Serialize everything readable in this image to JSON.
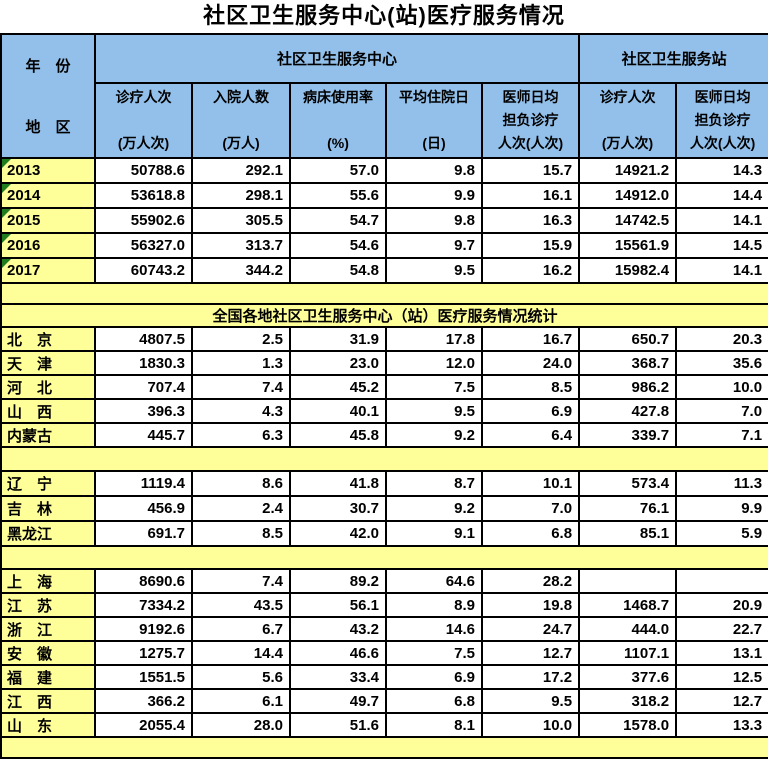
{
  "title": "社区卫生服务中心(站)医疗服务情况",
  "colors": {
    "header_blue": "#92C0EA",
    "label_yellow": "#FFFF99",
    "grid_border": "#000000",
    "error_triangle_green": "#1F7C1F"
  },
  "table": {
    "corner": {
      "top": "年　份",
      "bottom": "地　区"
    },
    "groups": [
      {
        "label": "社区卫生服务中心"
      },
      {
        "label": "社区卫生服务站"
      }
    ],
    "columns": [
      {
        "lines": [
          "诊疗人次",
          "(万人次)"
        ]
      },
      {
        "lines": [
          "入院人数",
          "(万人)"
        ]
      },
      {
        "lines": [
          "病床使用率",
          "(%)"
        ]
      },
      {
        "lines": [
          "平均住院日",
          "(日)"
        ]
      },
      {
        "lines": [
          "医师日均",
          "担负诊疗",
          "人次(人次)"
        ]
      },
      {
        "lines": [
          "诊疗人次",
          "(万人次)"
        ]
      },
      {
        "lines": [
          "医师日均",
          "担负诊疗",
          "人次(人次)"
        ]
      }
    ],
    "year_rows": [
      {
        "label": "2013",
        "values": [
          "50788.6",
          "292.1",
          "57.0",
          "9.8",
          "15.7",
          "14921.2",
          "14.3"
        ]
      },
      {
        "label": "2014",
        "values": [
          "53618.8",
          "298.1",
          "55.6",
          "9.9",
          "16.1",
          "14912.0",
          "14.4"
        ]
      },
      {
        "label": "2015",
        "values": [
          "55902.6",
          "305.5",
          "54.7",
          "9.8",
          "16.3",
          "14742.5",
          "14.1"
        ]
      },
      {
        "label": "2016",
        "values": [
          "56327.0",
          "313.7",
          "54.6",
          "9.7",
          "15.9",
          "15561.9",
          "14.5"
        ]
      },
      {
        "label": "2017",
        "values": [
          "60743.2",
          "344.2",
          "54.8",
          "9.5",
          "16.2",
          "15982.4",
          "14.1"
        ]
      }
    ],
    "section_title": "全国各地社区卫生服务中心（站）医疗服务情况统计",
    "province_groups": [
      [
        {
          "label": "北　京",
          "values": [
            "4807.5",
            "2.5",
            "31.9",
            "17.8",
            "16.7",
            "650.7",
            "20.3"
          ]
        },
        {
          "label": "天　津",
          "values": [
            "1830.3",
            "1.3",
            "23.0",
            "12.0",
            "24.0",
            "368.7",
            "35.6"
          ]
        },
        {
          "label": "河　北",
          "values": [
            "707.4",
            "7.4",
            "45.2",
            "7.5",
            "8.5",
            "986.2",
            "10.0"
          ]
        },
        {
          "label": "山　西",
          "values": [
            "396.3",
            "4.3",
            "40.1",
            "9.5",
            "6.9",
            "427.8",
            "7.0"
          ]
        },
        {
          "label": "内蒙古",
          "values": [
            "445.7",
            "6.3",
            "45.8",
            "9.2",
            "6.4",
            "339.7",
            "7.1"
          ]
        }
      ],
      [
        {
          "label": "辽　宁",
          "values": [
            "1119.4",
            "8.6",
            "41.8",
            "8.7",
            "10.1",
            "573.4",
            "11.3"
          ]
        },
        {
          "label": "吉　林",
          "values": [
            "456.9",
            "2.4",
            "30.7",
            "9.2",
            "7.0",
            "76.1",
            "9.9"
          ]
        },
        {
          "label": "黑龙江",
          "values": [
            "691.7",
            "8.5",
            "42.0",
            "9.1",
            "6.8",
            "85.1",
            "5.9"
          ]
        }
      ],
      [
        {
          "label": "上　海",
          "values": [
            "8690.6",
            "7.4",
            "89.2",
            "64.6",
            "28.2",
            "",
            ""
          ]
        },
        {
          "label": "江　苏",
          "values": [
            "7334.2",
            "43.5",
            "56.1",
            "8.9",
            "19.8",
            "1468.7",
            "20.9"
          ]
        },
        {
          "label": "浙　江",
          "values": [
            "9192.6",
            "6.7",
            "43.2",
            "14.6",
            "24.7",
            "444.0",
            "22.7"
          ]
        },
        {
          "label": "安　徽",
          "values": [
            "1275.7",
            "14.4",
            "46.6",
            "7.5",
            "12.7",
            "1107.1",
            "13.1"
          ]
        },
        {
          "label": "福　建",
          "values": [
            "1551.5",
            "5.6",
            "33.4",
            "6.9",
            "17.2",
            "377.6",
            "12.5"
          ]
        },
        {
          "label": "江　西",
          "values": [
            "366.2",
            "6.1",
            "49.7",
            "6.8",
            "9.5",
            "318.2",
            "12.7"
          ]
        },
        {
          "label": "山　东",
          "values": [
            "2055.4",
            "28.0",
            "51.6",
            "8.1",
            "10.0",
            "1578.0",
            "13.3"
          ]
        }
      ]
    ]
  }
}
